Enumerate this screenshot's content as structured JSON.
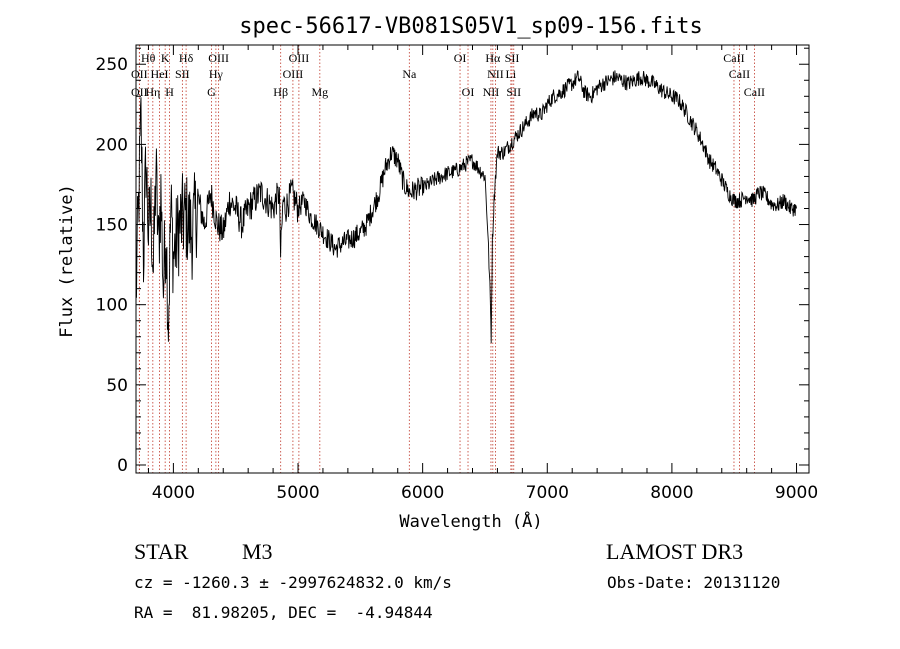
{
  "chart_data": {
    "type": "line",
    "title": "spec-56617-VB081S05V1_sp09-156.fits",
    "xlabel": "Wavelength (Å)",
    "ylabel": "Flux (relative)",
    "xlim": [
      3700,
      9100
    ],
    "ylim": [
      -5,
      262
    ],
    "x_ticks": [
      4000,
      5000,
      6000,
      7000,
      8000,
      9000
    ],
    "y_ticks": [
      0,
      50,
      100,
      150,
      200,
      250
    ],
    "series": [
      {
        "name": "flux",
        "x": [
          3700,
          3740,
          3760,
          3780,
          3800,
          3820,
          3840,
          3860,
          3880,
          3900,
          3920,
          3940,
          3960,
          3980,
          4000,
          4050,
          4100,
          4150,
          4200,
          4250,
          4300,
          4350,
          4400,
          4450,
          4500,
          4550,
          4600,
          4650,
          4700,
          4750,
          4800,
          4850,
          4860,
          4880,
          4900,
          4950,
          5000,
          5050,
          5100,
          5150,
          5200,
          5250,
          5300,
          5350,
          5400,
          5450,
          5500,
          5550,
          5600,
          5650,
          5700,
          5750,
          5800,
          5850,
          5900,
          5950,
          6000,
          6050,
          6100,
          6150,
          6200,
          6250,
          6300,
          6350,
          6400,
          6450,
          6500,
          6520,
          6540,
          6550,
          6560,
          6570,
          6580,
          6600,
          6650,
          6700,
          6750,
          6800,
          6850,
          6900,
          6950,
          7000,
          7050,
          7100,
          7150,
          7200,
          7250,
          7300,
          7350,
          7400,
          7450,
          7500,
          7550,
          7600,
          7650,
          7700,
          7750,
          7800,
          7850,
          7900,
          7950,
          8000,
          8050,
          8100,
          8150,
          8200,
          8250,
          8300,
          8350,
          8400,
          8450,
          8500,
          8550,
          8600,
          8650,
          8700,
          8750,
          8800,
          8850,
          8900,
          8950,
          9000
        ],
        "y": [
          105,
          215,
          130,
          190,
          145,
          160,
          120,
          185,
          135,
          170,
          110,
          150,
          90,
          160,
          130,
          150,
          155,
          145,
          165,
          150,
          170,
          150,
          145,
          165,
          160,
          150,
          160,
          165,
          170,
          165,
          160,
          170,
          130,
          165,
          160,
          170,
          160,
          165,
          155,
          150,
          145,
          140,
          135,
          138,
          140,
          142,
          145,
          150,
          160,
          170,
          185,
          195,
          190,
          175,
          170,
          172,
          173,
          175,
          178,
          180,
          182,
          183,
          185,
          188,
          190,
          185,
          180,
          150,
          110,
          80,
          140,
          160,
          175,
          195,
          195,
          200,
          205,
          210,
          215,
          220,
          218,
          225,
          230,
          232,
          235,
          238,
          242,
          232,
          230,
          235,
          238,
          240,
          242,
          240,
          238,
          240,
          242,
          240,
          238,
          235,
          232,
          230,
          228,
          222,
          215,
          208,
          200,
          190,
          185,
          178,
          170,
          165,
          165,
          168,
          165,
          170,
          168,
          163,
          162,
          165,
          160,
          160
        ]
      }
    ],
    "spectral_lines": [
      {
        "label": "Hθ",
        "wavelength": 3798
      },
      {
        "label": "OII",
        "wavelength": 3727
      },
      {
        "label": "OII",
        "wavelength": 3727
      },
      {
        "label": "HeI",
        "wavelength": 3889
      },
      {
        "label": "Hη",
        "wavelength": 3835
      },
      {
        "label": "K",
        "wavelength": 3934
      },
      {
        "label": "H",
        "wavelength": 3969
      },
      {
        "label": "SII",
        "wavelength": 4072
      },
      {
        "label": "Hδ",
        "wavelength": 4102
      },
      {
        "label": "OIII",
        "wavelength": 4363
      },
      {
        "label": "Hγ",
        "wavelength": 4341
      },
      {
        "label": "G",
        "wavelength": 4305
      },
      {
        "label": "Hβ",
        "wavelength": 4861
      },
      {
        "label": "OIII",
        "wavelength": 5007
      },
      {
        "label": "OIII",
        "wavelength": 4959
      },
      {
        "label": "Mg",
        "wavelength": 5175
      },
      {
        "label": "Na",
        "wavelength": 5893
      },
      {
        "label": "OI",
        "wavelength": 6300
      },
      {
        "label": "OI",
        "wavelength": 6364
      },
      {
        "label": "Hα",
        "wavelength": 6563
      },
      {
        "label": "NII",
        "wavelength": 6584
      },
      {
        "label": "NII",
        "wavelength": 6548
      },
      {
        "label": "SII",
        "wavelength": 6717
      },
      {
        "label": "Li",
        "wavelength": 6708
      },
      {
        "label": "SII",
        "wavelength": 6731
      },
      {
        "label": "CaII",
        "wavelength": 8498
      },
      {
        "label": "CaII",
        "wavelength": 8542
      },
      {
        "label": "CaII",
        "wavelength": 8662
      }
    ]
  },
  "info": {
    "class_label": "STAR",
    "subclass": "M3",
    "survey": "LAMOST DR3",
    "cz_line": "cz = -1260.3 ± -2997624832.0 km/s",
    "obs_date": "Obs-Date: 20131120",
    "coords": "RA =  81.98205, DEC =  -4.94844"
  },
  "colors": {
    "spectrum": "#000000",
    "line_markers": "#c0392b",
    "axes": "#000000"
  }
}
